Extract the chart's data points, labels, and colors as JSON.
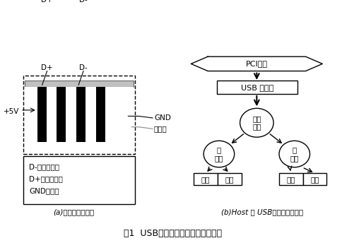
{
  "title": "图1  USB物理结构及其与主机的关系",
  "subtitle_a": "(a)物理接口的结构",
  "subtitle_b": "(b)Host 和 USB设备之间的关系",
  "left_labels": [
    "D-低速信号线",
    "D+全速信号线",
    "GND电源地"
  ],
  "gnd_label": "GND",
  "shield_label": "屏蔽壳",
  "pin_label_plus": "D+",
  "pin_label_minus": "D-",
  "voltage_label": "+5V",
  "pci_label": "PCI总线",
  "usb_controller_label": "USB 主控器",
  "root_hub_label": "根集\n线器",
  "hub_label": "集\n线器",
  "device_label": "设备",
  "bg_color": "#ffffff"
}
